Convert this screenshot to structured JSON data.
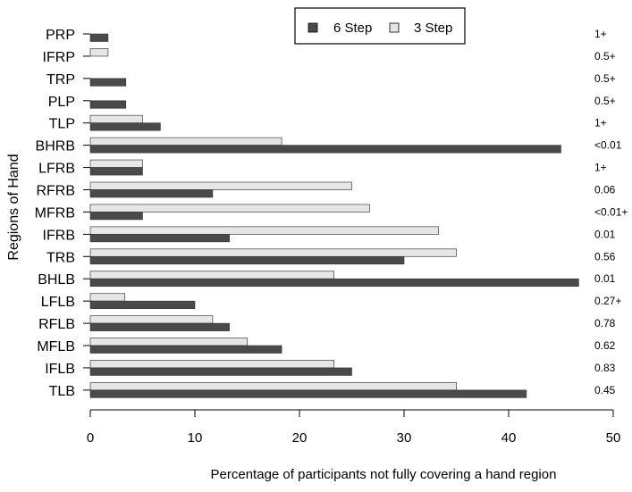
{
  "chart_data": {
    "type": "bar",
    "orientation": "horizontal",
    "xlabel": "Percentage of  participants not fully covering a hand region",
    "ylabel": "Regions of Hand",
    "xlim": [
      0,
      50
    ],
    "xticks": [
      "0",
      "10",
      "20",
      "30",
      "40",
      "50"
    ],
    "legend_position": "top-center",
    "grid": false,
    "categories": [
      "PRP",
      "IFRP",
      "TRP",
      "PLP",
      "TLP",
      "BHRB",
      "LFRB",
      "RFRB",
      "MFRB",
      "IFRB",
      "TRB",
      "BHLB",
      "LFLB",
      "RFLB",
      "MFLB",
      "IFLB",
      "TLB"
    ],
    "series": [
      {
        "name": "6 Step",
        "color": "#4a4a4a",
        "values": [
          1.7,
          0,
          3.4,
          3.4,
          6.7,
          45,
          5,
          11.7,
          5,
          13.3,
          30,
          46.7,
          10,
          13.3,
          18.3,
          25,
          41.7
        ]
      },
      {
        "name": "3 Step",
        "color": "#e6e6e6",
        "values": [
          0,
          1.7,
          0,
          0,
          5,
          18.3,
          5,
          25,
          26.7,
          33.3,
          35,
          23.3,
          3.3,
          11.7,
          15,
          23.3,
          35
        ]
      }
    ],
    "annotations": [
      "1+",
      "0.5+",
      "0.5+",
      "0.5+",
      "1+",
      "<0.01",
      "1+",
      "0.06",
      "<0.01+",
      "0.01",
      "0.56",
      "0.01",
      "0.27+",
      "0.78",
      "0.62",
      "0.83",
      "0.45"
    ]
  }
}
